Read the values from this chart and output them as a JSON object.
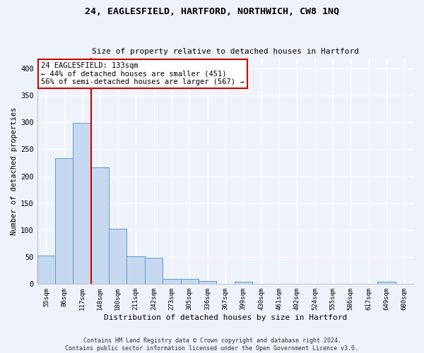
{
  "title1": "24, EAGLESFIELD, HARTFORD, NORTHWICH, CW8 1NQ",
  "title2": "Size of property relative to detached houses in Hartford",
  "xlabel": "Distribution of detached houses by size in Hartford",
  "ylabel": "Number of detached properties",
  "categories": [
    "55sqm",
    "86sqm",
    "117sqm",
    "148sqm",
    "180sqm",
    "211sqm",
    "242sqm",
    "273sqm",
    "305sqm",
    "336sqm",
    "367sqm",
    "399sqm",
    "430sqm",
    "461sqm",
    "492sqm",
    "524sqm",
    "555sqm",
    "586sqm",
    "617sqm",
    "649sqm",
    "680sqm"
  ],
  "values": [
    53,
    233,
    299,
    216,
    103,
    52,
    49,
    10,
    10,
    6,
    0,
    5,
    0,
    0,
    0,
    0,
    0,
    0,
    0,
    4,
    0
  ],
  "bar_color": "#c5d8ef",
  "bar_edge_color": "#5b9bd5",
  "redline_label": "24 EAGLESFIELD: 133sqm",
  "annotation_line1": "← 44% of detached houses are smaller (451)",
  "annotation_line2": "56% of semi-detached houses are larger (567) →",
  "red_line_x": 2.5,
  "ylim": [
    0,
    420
  ],
  "yticks": [
    0,
    50,
    100,
    150,
    200,
    250,
    300,
    350,
    400
  ],
  "footer1": "Contains HM Land Registry data © Crown copyright and database right 2024.",
  "footer2": "Contains public sector information licensed under the Open Government Licence v3.0.",
  "bg_color": "#eef2f9",
  "grid_color": "#ffffff",
  "annotation_box_color": "#ffffff",
  "annotation_box_edge": "#cc0000",
  "title1_fontsize": 9.5,
  "title2_fontsize": 8,
  "ylabel_fontsize": 7.5,
  "xlabel_fontsize": 8,
  "tick_fontsize": 6.5,
  "ytick_fontsize": 7.5,
  "footer_fontsize": 6
}
